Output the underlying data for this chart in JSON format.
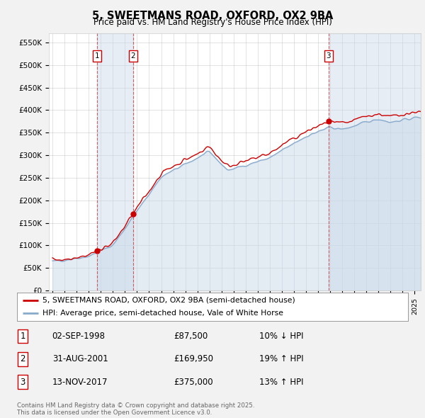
{
  "title": "5, SWEETMANS ROAD, OXFORD, OX2 9BA",
  "subtitle": "Price paid vs. HM Land Registry's House Price Index (HPI)",
  "ylabel_ticks": [
    "£0",
    "£50K",
    "£100K",
    "£150K",
    "£200K",
    "£250K",
    "£300K",
    "£350K",
    "£400K",
    "£450K",
    "£500K",
    "£550K"
  ],
  "ytick_values": [
    0,
    50000,
    100000,
    150000,
    200000,
    250000,
    300000,
    350000,
    400000,
    450000,
    500000,
    550000
  ],
  "ylim": [
    0,
    570000
  ],
  "xlim_start": 1994.7,
  "xlim_end": 2025.5,
  "sale_line_color": "#cc0000",
  "hpi_line_color": "#88aacc",
  "marker_box_color": "#cc0000",
  "vline_color": "#cc0000",
  "vline_alpha": 0.6,
  "shade_color": "#c8d8e8",
  "shade_alpha": 0.45,
  "sales": [
    {
      "date_year": 1998.67,
      "price": 87500,
      "label": "1"
    },
    {
      "date_year": 2001.66,
      "price": 169950,
      "label": "2"
    },
    {
      "date_year": 2017.87,
      "price": 375000,
      "label": "3"
    }
  ],
  "legend_items": [
    {
      "label": "5, SWEETMANS ROAD, OXFORD, OX2 9BA (semi-detached house)",
      "color": "#cc0000"
    },
    {
      "label": "HPI: Average price, semi-detached house, Vale of White Horse",
      "color": "#88aacc"
    }
  ],
  "table_rows": [
    {
      "num": "1",
      "date": "02-SEP-1998",
      "price": "£87,500",
      "hpi": "10% ↓ HPI"
    },
    {
      "num": "2",
      "date": "31-AUG-2001",
      "price": "£169,950",
      "hpi": "19% ↑ HPI"
    },
    {
      "num": "3",
      "date": "13-NOV-2017",
      "price": "£375,000",
      "hpi": "13% ↑ HPI"
    }
  ],
  "footer": "Contains HM Land Registry data © Crown copyright and database right 2025.\nThis data is licensed under the Open Government Licence v3.0.",
  "bg_color": "#f2f2f2",
  "plot_bg_color": "#ffffff",
  "grid_color": "#cccccc"
}
